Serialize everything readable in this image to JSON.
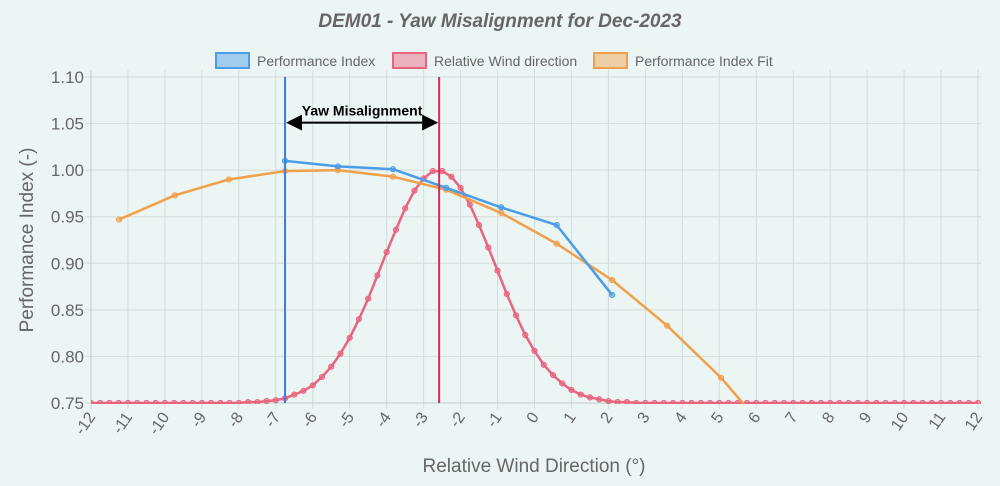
{
  "chart_data": {
    "type": "line",
    "title": "DEM01 - Yaw Misalignment for Dec-2023",
    "xlabel": "Relative Wind Direction (°)",
    "ylabel": "Performance Index (-)",
    "xlim": [
      -12,
      12.25
    ],
    "ylim": [
      0.75,
      1.1
    ],
    "x_ticks": [
      "-12",
      "-11",
      "-10",
      "-9",
      "-8",
      "-7",
      "-6",
      "-5",
      "-4",
      "-3",
      "-2",
      "-1",
      "0",
      "1",
      "2",
      "3",
      "4",
      "5",
      "6",
      "7",
      "8",
      "9",
      "10",
      "11",
      "12"
    ],
    "y_ticks": [
      "0.75",
      "0.80",
      "0.85",
      "0.90",
      "0.95",
      "1.00",
      "1.05",
      "1.10"
    ],
    "grid": true,
    "legend_position": "top",
    "series": [
      {
        "name": "Performance Index",
        "color": "#4a9de6",
        "x": [
          -6.75,
          -5.32,
          -3.83,
          -2.39,
          -0.9,
          0.6,
          2.1
        ],
        "y": [
          1.01,
          1.004,
          1.001,
          0.981,
          0.96,
          0.941,
          0.866
        ]
      },
      {
        "name": "Relative Wind direction",
        "color": "#e8647f",
        "x_start": -12,
        "x_step": 0.25,
        "y": [
          0.75,
          0.75,
          0.75,
          0.75,
          0.75,
          0.75,
          0.75,
          0.75,
          0.75,
          0.75,
          0.75,
          0.75,
          0.75,
          0.75,
          0.75,
          0.75,
          0.75,
          0.751,
          0.751,
          0.752,
          0.753,
          0.755,
          0.759,
          0.763,
          0.769,
          0.778,
          0.789,
          0.803,
          0.82,
          0.84,
          0.862,
          0.887,
          0.912,
          0.936,
          0.959,
          0.978,
          0.991,
          0.999,
          0.999,
          0.993,
          0.981,
          0.963,
          0.941,
          0.917,
          0.892,
          0.867,
          0.844,
          0.823,
          0.806,
          0.791,
          0.78,
          0.771,
          0.764,
          0.759,
          0.756,
          0.754,
          0.752,
          0.751,
          0.751,
          0.75,
          0.75,
          0.75,
          0.75,
          0.75,
          0.75,
          0.75,
          0.75,
          0.75,
          0.75,
          0.75,
          0.75,
          0.75,
          0.75,
          0.75,
          0.75,
          0.75,
          0.75,
          0.75,
          0.75,
          0.75,
          0.75,
          0.75,
          0.75,
          0.75,
          0.75,
          0.75,
          0.75,
          0.75,
          0.75,
          0.75,
          0.75,
          0.75,
          0.75,
          0.75,
          0.75,
          0.75,
          0.75
        ]
      },
      {
        "name": "Performance Index Fit",
        "color": "#f0a04b",
        "x": [
          -11.24,
          -9.73,
          -8.27,
          -6.75,
          -5.32,
          -3.83,
          -2.39,
          -0.9,
          0.6,
          2.1,
          3.59,
          5.05,
          6.5
        ],
        "y": [
          0.947,
          0.973,
          0.99,
          0.999,
          1.0,
          0.993,
          0.979,
          0.954,
          0.921,
          0.882,
          0.833,
          0.777,
          0.71
        ]
      }
    ],
    "vertical_lines": [
      {
        "name": "performance-peak",
        "x": -6.75,
        "color": "#3b7de8"
      },
      {
        "name": "wind-direction-peak",
        "x": -2.58,
        "color": "#d62a5e"
      }
    ],
    "annotation": {
      "label": "Yaw Misalignment",
      "from": -6.75,
      "to": -2.58,
      "y": 1.05
    }
  }
}
